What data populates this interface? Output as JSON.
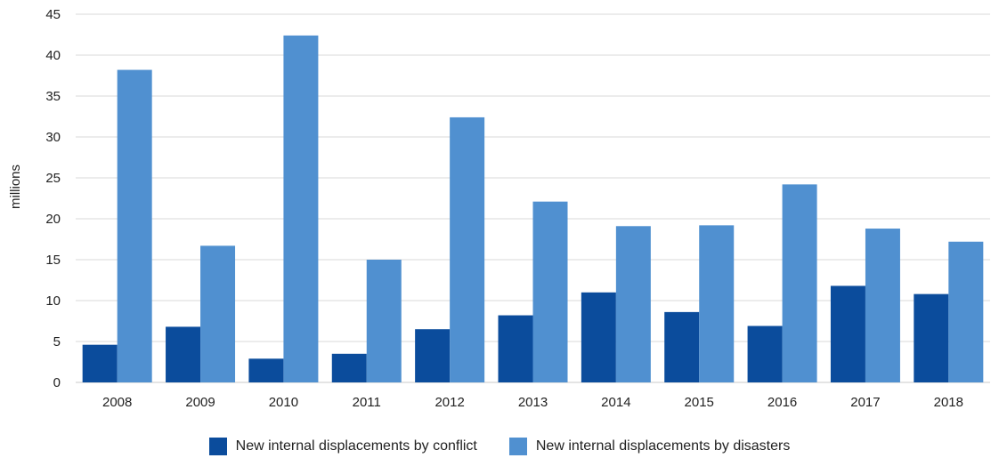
{
  "chart_data": {
    "type": "bar",
    "title": "",
    "xlabel": "",
    "ylabel": "millions",
    "categories": [
      "2008",
      "2009",
      "2010",
      "2011",
      "2012",
      "2013",
      "2014",
      "2015",
      "2016",
      "2017",
      "2018"
    ],
    "series": [
      {
        "name": "New internal displacements by conflict",
        "color": "#0b4c9c",
        "values": [
          4.6,
          6.8,
          2.9,
          3.5,
          6.5,
          8.2,
          11.0,
          8.6,
          6.9,
          11.8,
          10.8
        ]
      },
      {
        "name": "New internal displacements by disasters",
        "color": "#5090d0",
        "values": [
          38.2,
          16.7,
          42.4,
          15.0,
          32.4,
          22.1,
          19.1,
          19.2,
          24.2,
          18.8,
          17.2
        ]
      }
    ],
    "ylim": [
      0,
      45
    ],
    "yticks": [
      0,
      5,
      10,
      15,
      20,
      25,
      30,
      35,
      40,
      45
    ],
    "grid": true,
    "legend_position": "bottom"
  }
}
